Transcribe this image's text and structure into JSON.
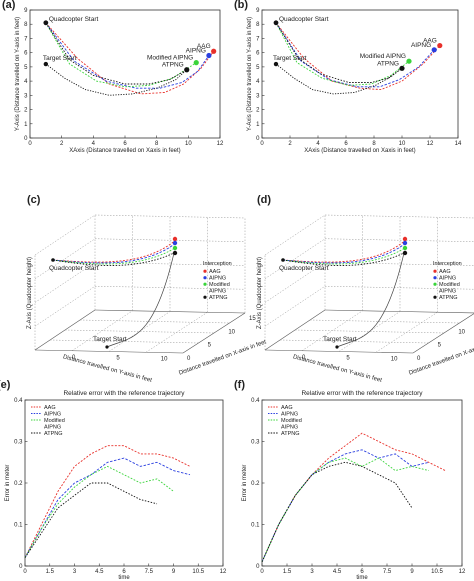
{
  "colors": {
    "AAG": "#e8302a",
    "AIPNG": "#2a3fe0",
    "Modified AIPNG": "#39d43a",
    "ATPNG": "#111111"
  },
  "chart_data": [
    {
      "id": "a",
      "panel_label": "(a)",
      "type": "line",
      "xlabel": "XAxis (Distance travelled on Xaxis in feet)",
      "ylabel": "Y-Axis (Distance travelled on Y-axis in feet)",
      "xlim": [
        0,
        12
      ],
      "ylim": [
        0,
        9
      ],
      "xticks": [
        "0",
        "2",
        "4",
        "6",
        "8",
        "10",
        "12"
      ],
      "yticks": [
        "0",
        "1",
        "2",
        "3",
        "4",
        "5",
        "6",
        "7",
        "8",
        "9"
      ],
      "annotations": {
        "quad": "Quadcopter Start",
        "target": "Target Start"
      },
      "quad_start": [
        1,
        8.1
      ],
      "target_start": [
        1,
        5.2
      ],
      "series": [
        {
          "name": "AAG",
          "label": "AAG",
          "x": [
            1,
            3,
            5,
            7,
            8.5,
            9.7,
            10.8,
            11.6
          ],
          "y": [
            8.1,
            5.6,
            3.8,
            3.1,
            3.2,
            3.8,
            4.9,
            6.1
          ]
        },
        {
          "name": "AIPNG",
          "label": "AIPNG",
          "x": [
            1,
            2.8,
            4.8,
            6.7,
            8.2,
            9.6,
            10.6,
            11.3
          ],
          "y": [
            8.1,
            5.4,
            4.0,
            3.5,
            3.5,
            3.9,
            4.7,
            5.8
          ]
        },
        {
          "name": "Modified AIPNG",
          "label": "Modified AIPNG",
          "x": [
            1,
            2.5,
            4.2,
            6,
            7.5,
            9,
            10.5
          ],
          "y": [
            8.1,
            5.2,
            4.0,
            3.6,
            3.7,
            4.2,
            5.3
          ]
        },
        {
          "name": "ATPNG",
          "label": "ATPNG",
          "x": [
            1,
            2.5,
            4,
            6,
            7.5,
            8.8,
            9.9
          ],
          "y": [
            8.1,
            5.5,
            4.4,
            3.8,
            3.8,
            4.1,
            4.8
          ]
        },
        {
          "name": "Target",
          "x": [
            1,
            2.2,
            3.5,
            5,
            6.5,
            8,
            9.2,
            9.9
          ],
          "y": [
            5.2,
            4.2,
            3.4,
            3.0,
            3.1,
            3.5,
            4.1,
            4.8
          ]
        }
      ]
    },
    {
      "id": "b",
      "panel_label": "(b)",
      "type": "line",
      "xlabel": "XAxis (Distance travelled on Xaxis in feet)",
      "ylabel": "Y-Axis (Distance travelled on Y-axis in feet)",
      "xlim": [
        0,
        14
      ],
      "ylim": [
        0,
        9
      ],
      "xticks": [
        "0",
        "2",
        "4",
        "6",
        "8",
        "10",
        "12",
        "14"
      ],
      "yticks": [
        "0",
        "1",
        "2",
        "3",
        "4",
        "5",
        "6",
        "7",
        "8",
        "9"
      ],
      "annotations": {
        "quad": "Quadcopter Start",
        "target": "Target Start"
      },
      "quad_start": [
        1,
        8.1
      ],
      "target_start": [
        1,
        5.2
      ],
      "series": [
        {
          "name": "AAG",
          "label": "AAG",
          "x": [
            1,
            3,
            5,
            7,
            8.5,
            10,
            11.5,
            12.7
          ],
          "y": [
            8.1,
            5.6,
            4.0,
            3.5,
            3.4,
            4.0,
            5.2,
            6.5
          ]
        },
        {
          "name": "AIPNG",
          "label": "AIPNG",
          "x": [
            1,
            2.8,
            4.8,
            6.8,
            8.4,
            9.8,
            11.2,
            12.3
          ],
          "y": [
            8.1,
            5.4,
            4.1,
            3.6,
            3.6,
            4.1,
            5.0,
            6.2
          ]
        },
        {
          "name": "Modified AIPNG",
          "label": "Modified AIPNG",
          "x": [
            1,
            2.5,
            4.3,
            6.2,
            7.8,
            9.2,
            10.5
          ],
          "y": [
            8.1,
            5.3,
            4.2,
            3.7,
            3.8,
            4.4,
            5.4
          ]
        },
        {
          "name": "ATPNG",
          "label": "ATPNG",
          "x": [
            1,
            2.6,
            4.2,
            6.2,
            7.8,
            9,
            10
          ],
          "y": [
            8.1,
            5.6,
            4.5,
            3.9,
            3.9,
            4.2,
            4.9
          ]
        },
        {
          "name": "Target",
          "x": [
            1,
            2.3,
            3.6,
            5.1,
            6.6,
            8.1,
            9.2,
            10
          ],
          "y": [
            5.2,
            4.2,
            3.4,
            3.1,
            3.2,
            3.7,
            4.3,
            4.9
          ]
        }
      ]
    },
    {
      "id": "c",
      "panel_label": "(c)",
      "type": "line",
      "zlabel": "Z-Axis (Quadcopter height)",
      "ylabel": "Distance travelled on Y-axis in feet",
      "xlabel": "Distance travelled on X-axis in feet",
      "xticks": [
        "0",
        "5",
        "10",
        "15"
      ],
      "yticks": [
        "0",
        "5",
        "10"
      ],
      "annotations": {
        "quad": "Quadcopter Start",
        "target": "Target Start"
      },
      "legend_title": "Interception",
      "legend": [
        "AAG",
        "AIPNG",
        "Modified AIPNG",
        "ATPNG"
      ],
      "legend_text": [
        "AAG",
        "AIPNG",
        "Modified",
        "AIPNG",
        "ATPNG"
      ]
    },
    {
      "id": "d",
      "panel_label": "(d)",
      "type": "line",
      "zlabel": "Z-Axis (Quadcopter height)",
      "ylabel": "Distance travelled on Y-axis in feet",
      "xlabel": "Distance travelled on X-axis in feet",
      "xticks": [
        "0",
        "5",
        "10",
        "15"
      ],
      "yticks": [
        "0",
        "5",
        "10"
      ],
      "annotations": {
        "quad": "Quadcopter Start",
        "target": "Target Start"
      },
      "legend_title": "Interception",
      "legend": [
        "AAG",
        "AIPNG",
        "Modified AIPNG",
        "ATPNG"
      ],
      "legend_text": [
        "AAG",
        "AIPNG",
        "Modified",
        "AIPNG",
        "ATPNG"
      ]
    },
    {
      "id": "e",
      "panel_label": "(e)",
      "type": "line",
      "title": "Relative error with the reference trajectory",
      "xlabel": "time",
      "ylabel": "Error in meter",
      "xlim": [
        0,
        12
      ],
      "ylim": [
        0,
        0.4
      ],
      "xticks": [
        "0",
        "1.5",
        "3",
        "4.5",
        "6",
        "7.5",
        "9",
        "10.5",
        "12"
      ],
      "yticks": [
        "0",
        "0.1",
        "0.2",
        "0.3",
        "0.4"
      ],
      "legend_text": [
        "AAG",
        "AIPNG",
        "Modified",
        "AIPNG",
        "ATPNG"
      ],
      "series": [
        {
          "name": "AAG",
          "x": [
            0,
            1,
            2,
            3,
            4,
            5,
            6,
            7,
            8,
            9,
            10
          ],
          "y": [
            0.02,
            0.1,
            0.18,
            0.24,
            0.27,
            0.29,
            0.29,
            0.27,
            0.27,
            0.26,
            0.24
          ]
        },
        {
          "name": "AIPNG",
          "x": [
            0,
            1,
            2,
            3,
            4,
            5,
            6,
            7,
            8,
            9,
            10
          ],
          "y": [
            0.02,
            0.09,
            0.16,
            0.2,
            0.22,
            0.25,
            0.26,
            0.24,
            0.25,
            0.23,
            0.22
          ]
        },
        {
          "name": "Modified AIPNG",
          "x": [
            0,
            1,
            2,
            3,
            4,
            5,
            6,
            7,
            8,
            9
          ],
          "y": [
            0.02,
            0.09,
            0.15,
            0.19,
            0.22,
            0.24,
            0.22,
            0.2,
            0.21,
            0.18
          ]
        },
        {
          "name": "ATPNG",
          "x": [
            0,
            1,
            2,
            3,
            4,
            5,
            6,
            7,
            8
          ],
          "y": [
            0.02,
            0.08,
            0.14,
            0.17,
            0.2,
            0.2,
            0.18,
            0.16,
            0.15
          ]
        }
      ]
    },
    {
      "id": "f",
      "panel_label": "(f)",
      "type": "line",
      "title": "Relative error with the reference trajectory",
      "xlabel": "time",
      "ylabel": "Error in meter",
      "xlim": [
        0,
        12
      ],
      "ylim": [
        0,
        0.4
      ],
      "xticks": [
        "0",
        "1.5",
        "3",
        "4.5",
        "6",
        "7.5",
        "9",
        "10.5",
        "12"
      ],
      "yticks": [
        "0",
        "0.1",
        "0.2",
        "0.3",
        "0.4"
      ],
      "legend_text": [
        "AAG",
        "AIPNG",
        "Modified",
        "AIPNG",
        "ATPNG"
      ],
      "series": [
        {
          "name": "AAG",
          "x": [
            0,
            1,
            2,
            3,
            4,
            5,
            6,
            7,
            8,
            9,
            10,
            11
          ],
          "y": [
            0.01,
            0.1,
            0.17,
            0.22,
            0.26,
            0.29,
            0.32,
            0.3,
            0.28,
            0.27,
            0.25,
            0.23
          ]
        },
        {
          "name": "AIPNG",
          "x": [
            0,
            1,
            2,
            3,
            4,
            5,
            6,
            7,
            8,
            9,
            10
          ],
          "y": [
            0.01,
            0.1,
            0.17,
            0.22,
            0.25,
            0.27,
            0.28,
            0.26,
            0.27,
            0.24,
            0.25
          ]
        },
        {
          "name": "Modified AIPNG",
          "x": [
            0,
            1,
            2,
            3,
            4,
            5,
            6,
            7,
            8,
            9,
            10
          ],
          "y": [
            0.01,
            0.1,
            0.17,
            0.22,
            0.25,
            0.26,
            0.24,
            0.26,
            0.23,
            0.24,
            0.23
          ]
        },
        {
          "name": "ATPNG",
          "x": [
            0,
            1,
            2,
            3,
            4,
            5,
            6,
            7,
            8,
            9
          ],
          "y": [
            0.01,
            0.1,
            0.17,
            0.22,
            0.24,
            0.25,
            0.24,
            0.22,
            0.2,
            0.14
          ]
        }
      ]
    }
  ]
}
